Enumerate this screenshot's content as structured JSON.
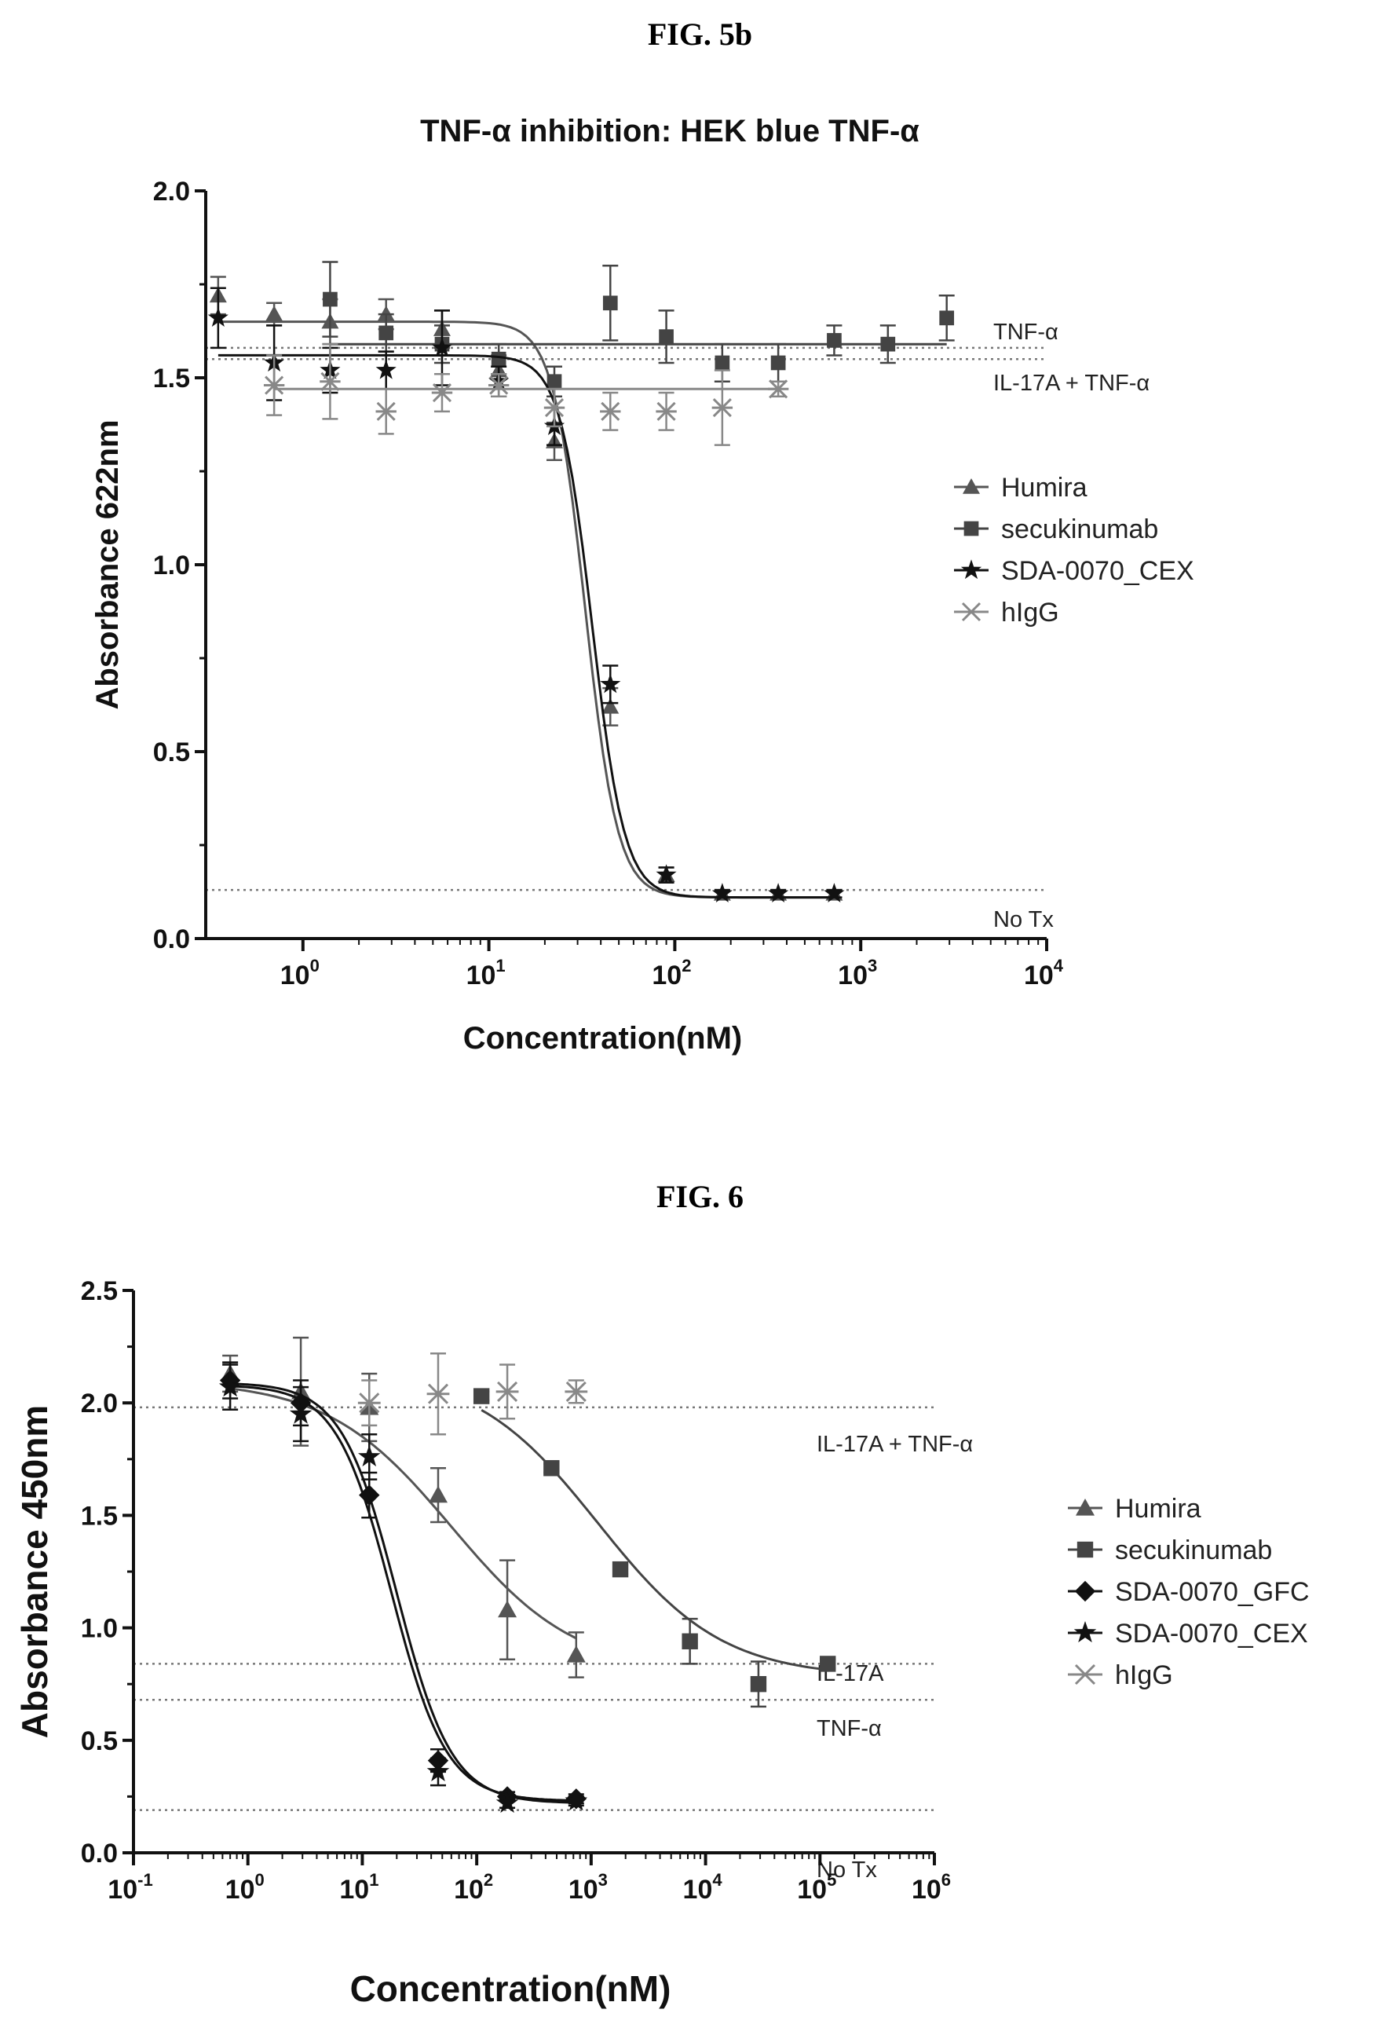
{
  "figures": [
    {
      "label": "FIG. 5b"
    },
    {
      "label": "FIG. 6"
    }
  ],
  "chart_data": [
    {
      "type": "scatter",
      "title": "TNF-α inhibition: HEK blue TNF-α",
      "xlabel": "Concentration(nM)",
      "ylabel": "Absorbance 622nm",
      "x_scale": "log",
      "xlim": [
        0.3,
        10000
      ],
      "ylim": [
        0,
        2.0
      ],
      "x_ticks": [
        {
          "base": "10",
          "exp": "0",
          "value": 1
        },
        {
          "base": "10",
          "exp": "1",
          "value": 10
        },
        {
          "base": "10",
          "exp": "2",
          "value": 100
        },
        {
          "base": "10",
          "exp": "3",
          "value": 1000
        },
        {
          "base": "10",
          "exp": "4",
          "value": 10000
        }
      ],
      "y_ticks": [
        {
          "label": "0.0",
          "value": 0
        },
        {
          "label": "0.5",
          "value": 0.5
        },
        {
          "label": "1.0",
          "value": 1.0
        },
        {
          "label": "1.5",
          "value": 1.5
        },
        {
          "label": "2.0",
          "value": 2.0
        }
      ],
      "legend_position": "right",
      "reference_lines": [
        {
          "label": "TNF-α",
          "y": 1.58
        },
        {
          "label": "IL-17A + TNF-α",
          "y": 1.55
        },
        {
          "label": "No Tx",
          "y": 0.13
        }
      ],
      "series": [
        {
          "name": "Humira",
          "marker": "triangle",
          "color": "#555555",
          "x": [
            0.35,
            0.7,
            1.4,
            2.8,
            5.6,
            11.3,
            22.5,
            45,
            90,
            180,
            360,
            720
          ],
          "y": [
            1.72,
            1.67,
            1.65,
            1.67,
            1.63,
            1.52,
            1.33,
            0.62,
            0.17,
            0.12,
            0.12,
            0.12
          ],
          "err": [
            0.05,
            0.03,
            0.06,
            0.04,
            0.05,
            0.04,
            0.05,
            0.05,
            0.02,
            0.01,
            0.01,
            0.01
          ],
          "fit": {
            "top": 1.65,
            "bottom": 0.11,
            "ec50": 33,
            "hill": 5
          }
        },
        {
          "name": "secukinumab",
          "marker": "square",
          "color": "#444444",
          "x": [
            1.4,
            2.8,
            5.6,
            11.3,
            22.5,
            45,
            90,
            180,
            360,
            720,
            1400,
            2900
          ],
          "y": [
            1.71,
            1.62,
            1.59,
            1.55,
            1.49,
            1.7,
            1.61,
            1.54,
            1.54,
            1.6,
            1.59,
            1.66
          ],
          "err": [
            0.1,
            0.05,
            0.05,
            0.04,
            0.04,
            0.1,
            0.07,
            0.05,
            0.05,
            0.04,
            0.05,
            0.06
          ],
          "fit": {
            "top": 1.59,
            "bottom": 1.59,
            "ec50": 100,
            "hill": 1
          }
        },
        {
          "name": "SDA-0070_CEX",
          "marker": "star",
          "color": "#111111",
          "x": [
            0.35,
            0.7,
            1.4,
            2.8,
            5.6,
            11.3,
            22.5,
            45,
            90,
            180,
            360,
            720
          ],
          "y": [
            1.66,
            1.54,
            1.52,
            1.52,
            1.58,
            1.49,
            1.37,
            0.68,
            0.17,
            0.12,
            0.12,
            0.12
          ],
          "err": [
            0.08,
            0.1,
            0.06,
            0.05,
            0.1,
            0.04,
            0.05,
            0.05,
            0.02,
            0.01,
            0.01,
            0.01
          ],
          "fit": {
            "top": 1.56,
            "bottom": 0.11,
            "ec50": 36,
            "hill": 5
          }
        },
        {
          "name": "hIgG",
          "marker": "x",
          "color": "#888888",
          "x": [
            0.7,
            1.4,
            2.8,
            5.6,
            11.3,
            22.5,
            45,
            90,
            180,
            360
          ],
          "y": [
            1.48,
            1.49,
            1.41,
            1.46,
            1.48,
            1.42,
            1.41,
            1.41,
            1.42,
            1.47
          ],
          "err": [
            0.08,
            0.1,
            0.06,
            0.05,
            0.03,
            0.05,
            0.05,
            0.05,
            0.1,
            0.02
          ],
          "fit": {
            "top": 1.47,
            "bottom": 1.47,
            "ec50": 100,
            "hill": 1
          }
        }
      ]
    },
    {
      "type": "scatter",
      "title": "",
      "xlabel": "Concentration(nM)",
      "ylabel": "Absorbance 450nm",
      "x_scale": "log",
      "xlim": [
        0.1,
        1000000
      ],
      "ylim": [
        0,
        2.5
      ],
      "x_ticks": [
        {
          "base": "10",
          "exp": "-1",
          "value": 0.1
        },
        {
          "base": "10",
          "exp": "0",
          "value": 1
        },
        {
          "base": "10",
          "exp": "1",
          "value": 10
        },
        {
          "base": "10",
          "exp": "2",
          "value": 100
        },
        {
          "base": "10",
          "exp": "3",
          "value": 1000
        },
        {
          "base": "10",
          "exp": "4",
          "value": 10000
        },
        {
          "base": "10",
          "exp": "5",
          "value": 100000
        },
        {
          "base": "10",
          "exp": "6",
          "value": 1000000
        }
      ],
      "y_ticks": [
        {
          "label": "0.0",
          "value": 0
        },
        {
          "label": "0.5",
          "value": 0.5
        },
        {
          "label": "1.0",
          "value": 1.0
        },
        {
          "label": "1.5",
          "value": 1.5
        },
        {
          "label": "2.0",
          "value": 2.0
        },
        {
          "label": "2.5",
          "value": 2.5
        }
      ],
      "legend_position": "right",
      "reference_lines": [
        {
          "label": "IL-17A + TNF-α",
          "y": 1.98
        },
        {
          "label": "IL-17A",
          "y": 0.84
        },
        {
          "label": "TNF-α",
          "y": 0.68
        },
        {
          "label": "No Tx",
          "y": 0.19
        }
      ],
      "series": [
        {
          "name": "Humira",
          "marker": "triangle",
          "color": "#555555",
          "x": [
            0.7,
            2.9,
            11.5,
            46,
            185,
            740
          ],
          "y": [
            2.13,
            2.05,
            1.98,
            1.59,
            1.08,
            0.88
          ],
          "err": [
            0.08,
            0.24,
            0.15,
            0.12,
            0.22,
            0.1
          ],
          "fit": {
            "top": 2.1,
            "bottom": 0.8,
            "ec50": 60,
            "hill": 0.8
          }
        },
        {
          "name": "secukinumab",
          "marker": "square",
          "color": "#444444",
          "x": [
            110,
            450,
            1800,
            7300,
            29000,
            117000
          ],
          "y": [
            2.03,
            1.71,
            1.26,
            0.94,
            0.75,
            0.84
          ],
          "err": [
            0.02,
            0.02,
            0.02,
            0.1,
            0.1,
            0.02
          ],
          "fit": {
            "top": 2.15,
            "bottom": 0.78,
            "ec50": 1150,
            "hill": 0.8
          }
        },
        {
          "name": "SDA-0070_GFC",
          "marker": "diamond",
          "color": "#111111",
          "x": [
            0.7,
            2.9,
            11.5,
            46,
            185,
            740
          ],
          "y": [
            2.1,
            2.0,
            1.59,
            0.41,
            0.25,
            0.24
          ],
          "err": [
            0.08,
            0.1,
            0.1,
            0.05,
            0.02,
            0.02
          ],
          "fit": {
            "top": 2.08,
            "bottom": 0.23,
            "ec50": 18,
            "hill": 1.8
          }
        },
        {
          "name": "SDA-0070_CEX",
          "marker": "star",
          "color": "#111111",
          "x": [
            0.7,
            2.9,
            11.5,
            46,
            185,
            740
          ],
          "y": [
            2.07,
            1.95,
            1.76,
            0.36,
            0.22,
            0.23
          ],
          "err": [
            0.1,
            0.12,
            0.1,
            0.06,
            0.02,
            0.02
          ],
          "fit": {
            "top": 2.09,
            "bottom": 0.22,
            "ec50": 20,
            "hill": 1.8
          }
        },
        {
          "name": "hIgG",
          "marker": "x",
          "color": "#888888",
          "x": [
            11.5,
            46,
            185,
            740
          ],
          "y": [
            2.0,
            2.04,
            2.05,
            2.05
          ],
          "err": [
            0.1,
            0.18,
            0.12,
            0.05
          ],
          "fit": null
        }
      ]
    }
  ]
}
